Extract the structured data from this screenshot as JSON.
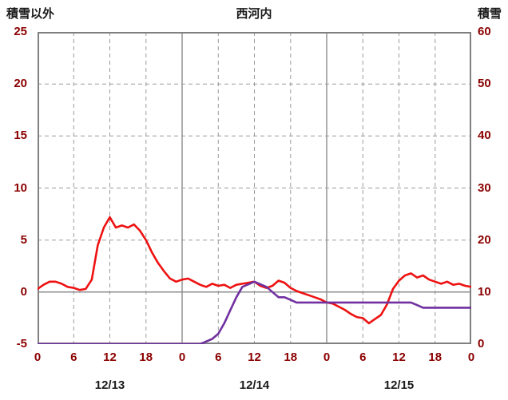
{
  "header": {
    "left_label": "積雪以外",
    "title": "西河内",
    "right_label": "積雪"
  },
  "chart_data": {
    "type": "line",
    "title": "西河内",
    "x_unit": "hour",
    "x_range": [
      0,
      72
    ],
    "x_ticks": [
      0,
      6,
      12,
      18,
      24,
      30,
      36,
      42,
      48,
      54,
      60,
      66,
      72
    ],
    "x_tick_labels": [
      "0",
      "6",
      "12",
      "18",
      "0",
      "6",
      "12",
      "18",
      "0",
      "6",
      "12",
      "18",
      "0"
    ],
    "day_labels": [
      {
        "label": "12/13",
        "hour": 12
      },
      {
        "label": "12/14",
        "hour": 36
      },
      {
        "label": "12/15",
        "hour": 60
      }
    ],
    "left_axis": {
      "label": "積雪以外",
      "ticks": [
        25,
        20,
        15,
        10,
        5,
        0,
        -5
      ],
      "range": [
        -5,
        25
      ]
    },
    "right_axis": {
      "label": "積雪",
      "ticks": [
        60,
        50,
        40,
        30,
        20,
        10,
        0
      ],
      "range": [
        0,
        60
      ]
    },
    "grid": {
      "vertical_dashed_hours": [
        6,
        12,
        18,
        30,
        36,
        42,
        54,
        60,
        66
      ],
      "vertical_solid_hours": [
        24,
        48
      ],
      "horizontal_solid_left_value": 0
    },
    "colors": {
      "frame": "#808080",
      "grid_dashed": "#9a9a9a",
      "grid_solid": "#8c8c8c",
      "tick_text": "#8b0000",
      "title_text": "#1a1a1a"
    },
    "series": [
      {
        "name": "積雪以外",
        "axis": "left",
        "color": "#ee1111",
        "values": [
          0.3,
          0.7,
          1.0,
          1.0,
          0.8,
          0.5,
          0.4,
          0.2,
          0.3,
          1.2,
          4.5,
          6.2,
          7.2,
          6.2,
          6.4,
          6.2,
          6.5,
          5.9,
          5.0,
          3.8,
          2.8,
          2.0,
          1.3,
          1.0,
          1.2,
          1.3,
          1.0,
          0.7,
          0.5,
          0.8,
          0.6,
          0.7,
          0.4,
          0.7,
          0.8,
          0.9,
          1.0,
          0.6,
          0.4,
          0.6,
          1.1,
          0.9,
          0.4,
          0.1,
          -0.1,
          -0.3,
          -0.5,
          -0.7,
          -1.0,
          -1.1,
          -1.4,
          -1.7,
          -2.1,
          -2.4,
          -2.5,
          -3.0,
          -2.6,
          -2.2,
          -1.2,
          0.3,
          1.1,
          1.6,
          1.8,
          1.4,
          1.6,
          1.2,
          1.0,
          0.8,
          1.0,
          0.7,
          0.8,
          0.6,
          0.5
        ]
      },
      {
        "name": "積雪",
        "axis": "right",
        "color": "#7030a0",
        "values": [
          0,
          0,
          0,
          0,
          0,
          0,
          0,
          0,
          0,
          0,
          0,
          0,
          0,
          0,
          0,
          0,
          0,
          0,
          0,
          0,
          0,
          0,
          0,
          0,
          0,
          0,
          0,
          0,
          0.5,
          1,
          2,
          4,
          6.5,
          9,
          11,
          11.5,
          12,
          11.5,
          11,
          10,
          9,
          9,
          8.5,
          8,
          8,
          8,
          8,
          8,
          8,
          8,
          8,
          8,
          8,
          8,
          8,
          8,
          8,
          8,
          8,
          8,
          8,
          8,
          8,
          7.5,
          7,
          7,
          7,
          7,
          7,
          7,
          7,
          7,
          7
        ]
      }
    ]
  }
}
